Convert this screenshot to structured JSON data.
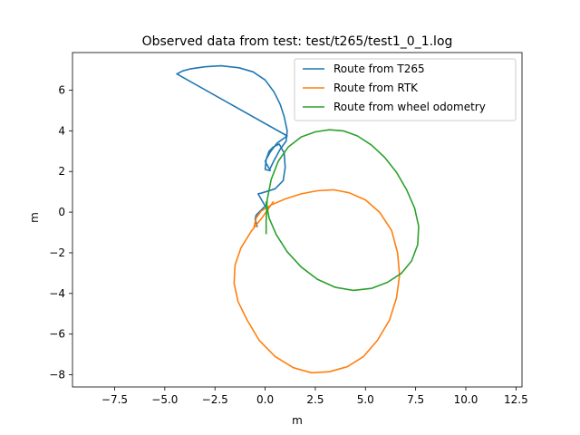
{
  "chart_data": {
    "type": "line",
    "title": "Observed data from test: test/t265/test1_0_1.log",
    "xlabel": "m",
    "ylabel": "m",
    "xlim": [
      -9.6,
      12.8
    ],
    "ylim": [
      -8.6,
      7.85
    ],
    "xticks": [
      -7.5,
      -5.0,
      -2.5,
      0.0,
      2.5,
      5.0,
      7.5,
      10.0,
      12.5
    ],
    "xtick_labels": [
      "−7.5",
      "−5.0",
      "−2.5",
      "0.0",
      "2.5",
      "5.0",
      "7.5",
      "10.0",
      "12.5"
    ],
    "yticks": [
      -8,
      -6,
      -4,
      -2,
      0,
      2,
      4,
      6
    ],
    "ytick_labels": [
      "−8",
      "−6",
      "−4",
      "−2",
      "0",
      "2",
      "4",
      "6"
    ],
    "grid": false,
    "legend_position": "top-right",
    "series": [
      {
        "name": "Route from T265",
        "color": "#1f77b4",
        "x": [
          -0.4,
          -0.5,
          -0.45,
          0.0,
          -0.35,
          -0.15,
          0.5,
          0.9,
          1.0,
          0.95,
          0.7,
          0.4,
          0.2,
          0.05,
          0.0,
          0.2,
          0.45,
          0.75,
          1.05,
          1.1,
          0.95,
          0.75,
          0.45,
          0.0,
          -0.6,
          -1.3,
          -2.2,
          -3.0,
          -3.7,
          -4.1,
          -4.4,
          1.1,
          0.6,
          0.25,
          0.0,
          0.25
        ],
        "y": [
          -0.7,
          -0.35,
          -0.15,
          0.3,
          0.9,
          0.95,
          1.15,
          1.55,
          2.2,
          2.9,
          3.35,
          3.2,
          3.0,
          2.6,
          2.1,
          2.05,
          2.55,
          3.1,
          3.5,
          4.0,
          4.7,
          5.3,
          5.9,
          6.5,
          6.9,
          7.1,
          7.2,
          7.15,
          7.05,
          6.95,
          6.8,
          3.75,
          3.4,
          2.95,
          2.5,
          2.05
        ]
      },
      {
        "name": "Route from RTK",
        "color": "#ff7f0e",
        "x": [
          -0.55,
          -0.45,
          -0.2,
          0.3,
          1.0,
          1.8,
          2.6,
          3.4,
          4.2,
          5.0,
          5.7,
          6.3,
          6.6,
          6.7,
          6.55,
          6.2,
          5.6,
          4.9,
          4.1,
          3.2,
          2.3,
          1.4,
          0.5,
          -0.3,
          -0.9,
          -1.35,
          -1.55,
          -1.5,
          -1.2,
          -0.7,
          -0.1,
          0.4
        ],
        "y": [
          -0.7,
          -0.3,
          0.05,
          0.35,
          0.65,
          0.9,
          1.05,
          1.1,
          0.95,
          0.6,
          0.0,
          -0.9,
          -2.0,
          -3.1,
          -4.2,
          -5.3,
          -6.3,
          -7.1,
          -7.6,
          -7.85,
          -7.9,
          -7.65,
          -7.1,
          -6.3,
          -5.3,
          -4.4,
          -3.5,
          -2.6,
          -1.75,
          -0.95,
          -0.2,
          0.5
        ]
      },
      {
        "name": "Route from wheel odometry",
        "color": "#2ca02c",
        "x": [
          0.05,
          0.05,
          0.1,
          0.3,
          0.65,
          1.15,
          1.8,
          2.5,
          3.2,
          3.9,
          4.6,
          5.3,
          5.95,
          6.55,
          7.05,
          7.45,
          7.65,
          7.6,
          7.3,
          6.8,
          6.1,
          5.3,
          4.4,
          3.5,
          2.6,
          1.8,
          1.1,
          0.55,
          0.2,
          0.05,
          0.05
        ],
        "y": [
          -1.05,
          -0.4,
          0.6,
          1.6,
          2.5,
          3.2,
          3.7,
          3.95,
          4.05,
          4.0,
          3.75,
          3.3,
          2.7,
          1.95,
          1.1,
          0.2,
          -0.7,
          -1.6,
          -2.4,
          -3.0,
          -3.45,
          -3.75,
          -3.85,
          -3.7,
          -3.3,
          -2.7,
          -1.95,
          -1.1,
          -0.3,
          0.5,
          0.2
        ]
      }
    ]
  }
}
